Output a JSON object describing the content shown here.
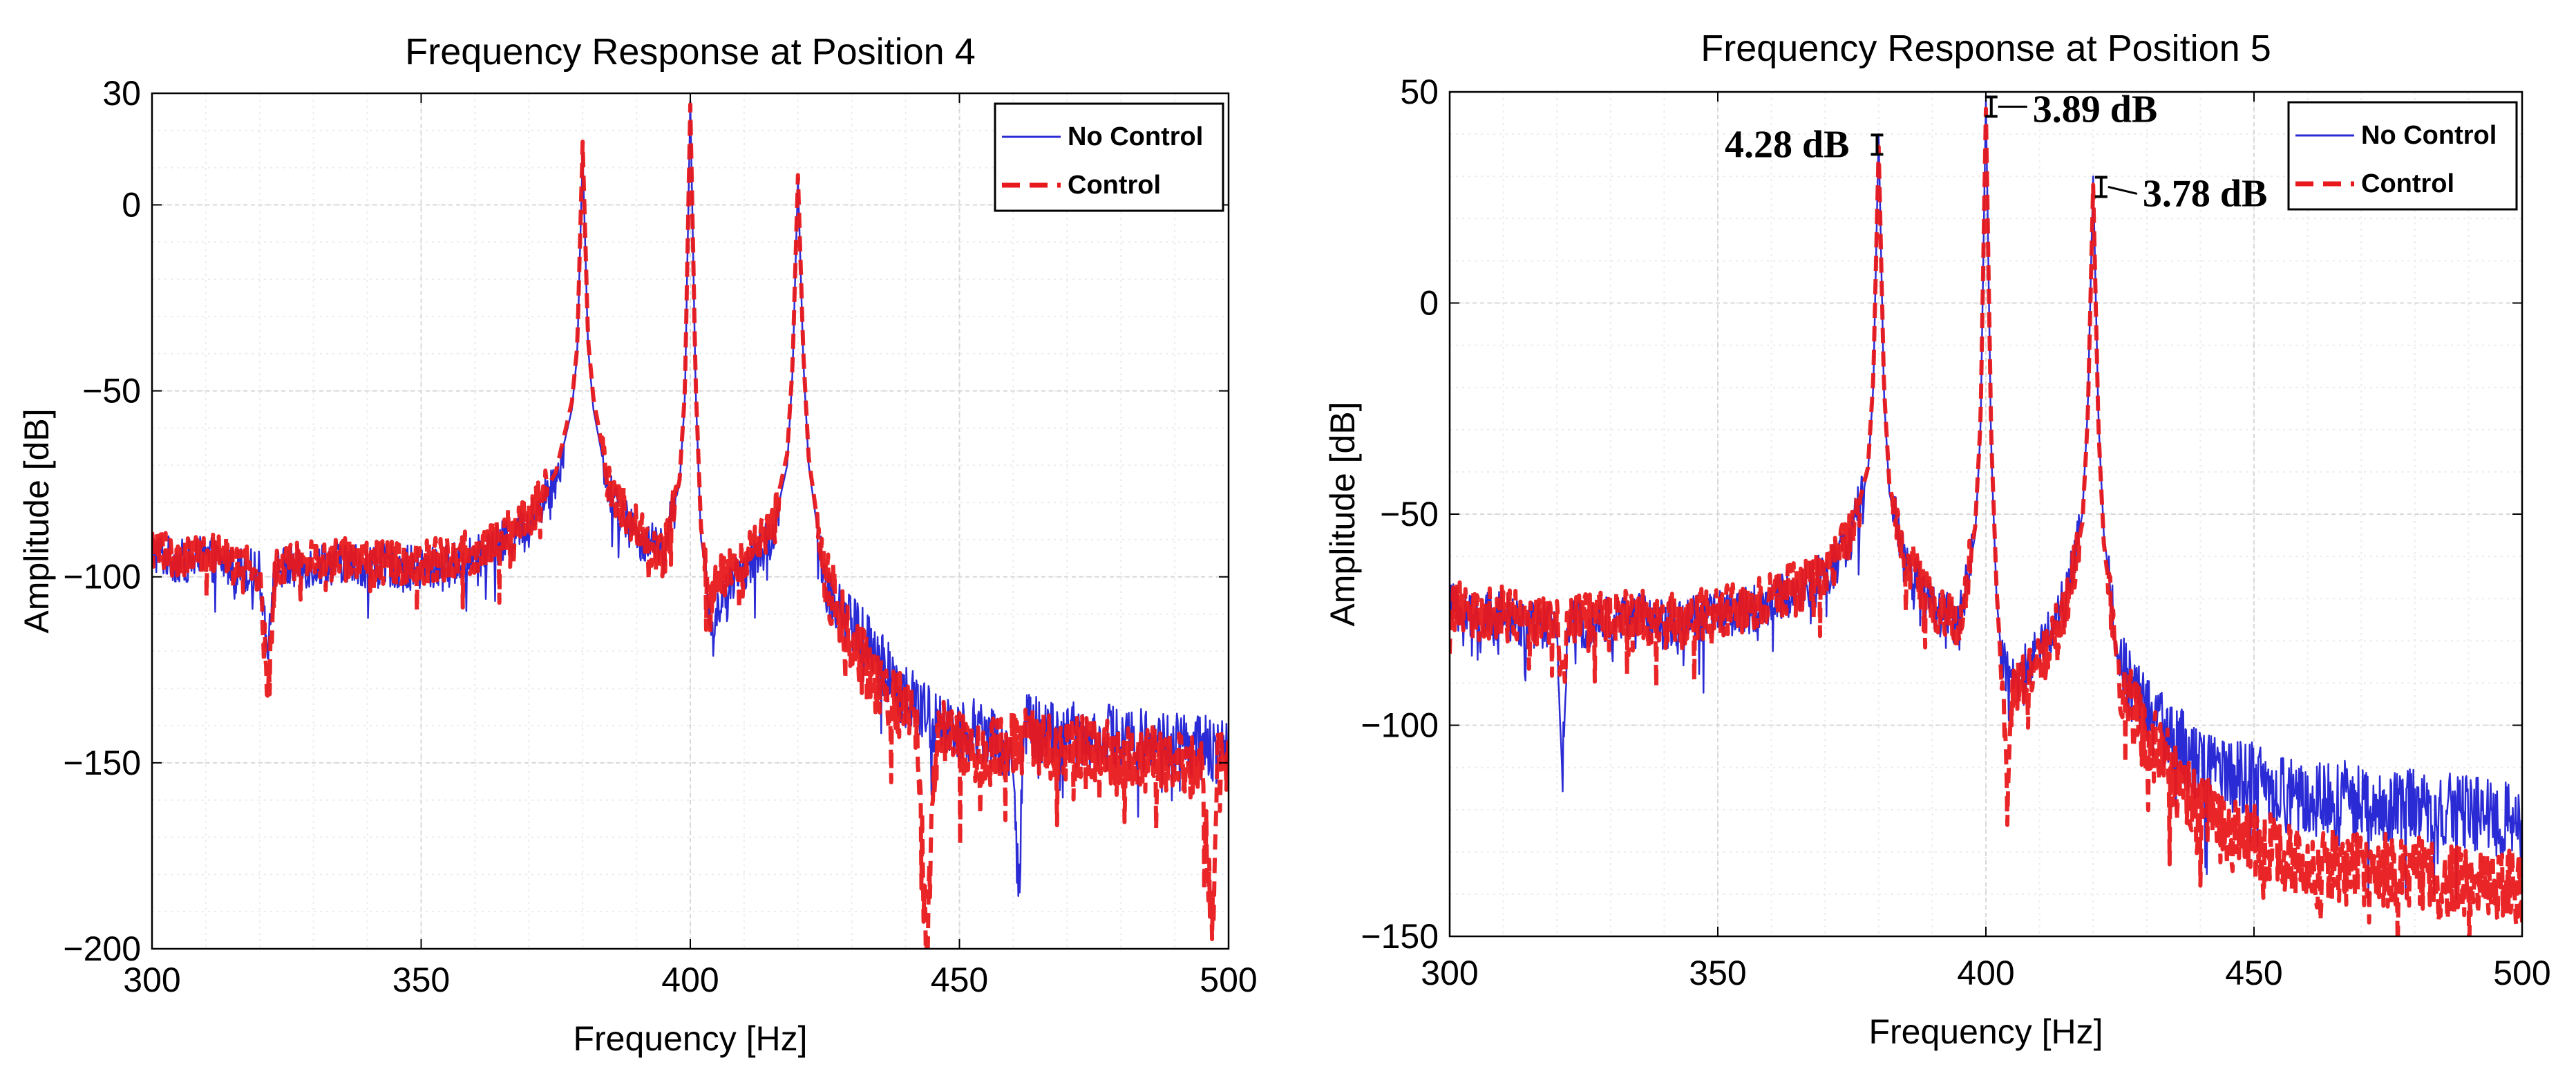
{
  "colors": {
    "no_control": "#2b2bd6",
    "control": "#e8191c",
    "grid": "#d8d8d8",
    "axes": "#000000"
  },
  "legend_labels": {
    "no_control": "No Control",
    "control": "Control"
  },
  "chart_data": [
    {
      "type": "line",
      "title": "Frequency Response at Position 4",
      "xlabel": "Frequency [Hz]",
      "ylabel": "Amplitude [dB]",
      "xlim": [
        300,
        500
      ],
      "ylim": [
        -200,
        30
      ],
      "xticks": [
        300,
        350,
        400,
        450,
        500
      ],
      "xtick_labels": [
        "300",
        "350",
        "400",
        "450",
        "500"
      ],
      "yticks": [
        -200,
        -150,
        -100,
        -50,
        0,
        30
      ],
      "ytick_labels": [
        "−200",
        "−150",
        "−100",
        "−50",
        "0",
        "30"
      ],
      "grid": true,
      "legend_position": "top-right",
      "annotations": [],
      "series": [
        {
          "name": "No Control",
          "style": "solid",
          "x": [
            300,
            305,
            310,
            315,
            320,
            321.5,
            323,
            330,
            335,
            340,
            345,
            350,
            355,
            360,
            365,
            370,
            375,
            378,
            379,
            380,
            381,
            382,
            385,
            390,
            395,
            398,
            399,
            400,
            401,
            402,
            403,
            404,
            405,
            410,
            415,
            418,
            419,
            420,
            421,
            422,
            425,
            430,
            435,
            440,
            445,
            450,
            455,
            460,
            461,
            462,
            465,
            470,
            475,
            480,
            485,
            490,
            495,
            500
          ],
          "y": [
            -93,
            -96,
            -95,
            -97,
            -99,
            -118,
            -98,
            -97,
            -96,
            -97,
            -97,
            -98,
            -97,
            -95,
            -91,
            -86,
            -74,
            -55,
            -40,
            14,
            -38,
            -55,
            -78,
            -89,
            -93,
            -75,
            -52,
            28,
            -50,
            -90,
            -100,
            -118,
            -108,
            -98,
            -90,
            -70,
            -45,
            7,
            -42,
            -70,
            -102,
            -112,
            -123,
            -132,
            -139,
            -141,
            -141,
            -150,
            -185,
            -140,
            -141,
            -142,
            -143,
            -143,
            -144,
            -145,
            -146,
            -148
          ]
        },
        {
          "name": "Control",
          "style": "dashed",
          "x": [
            300,
            305,
            310,
            315,
            320,
            321.5,
            323,
            330,
            335,
            340,
            345,
            350,
            355,
            360,
            365,
            370,
            375,
            378,
            379,
            380,
            381,
            382,
            385,
            390,
            395,
            398,
            399,
            400,
            401,
            402,
            403,
            404,
            405,
            410,
            415,
            418,
            419,
            420,
            421,
            422,
            425,
            430,
            435,
            440,
            442,
            444,
            445,
            446,
            450,
            455,
            460,
            465,
            470,
            475,
            480,
            485,
            490,
            495,
            497,
            498,
            500
          ],
          "y": [
            -92,
            -95,
            -94,
            -96,
            -98,
            -130,
            -97,
            -96,
            -95,
            -96,
            -96,
            -96,
            -95,
            -93,
            -89,
            -84,
            -72,
            -53,
            -38,
            17,
            -36,
            -52,
            -76,
            -87,
            -95,
            -74,
            -50,
            27,
            -48,
            -87,
            -97,
            -104,
            -101,
            -95,
            -87,
            -67,
            -43,
            8,
            -40,
            -68,
            -100,
            -118,
            -130,
            -136,
            -140,
            -200,
            -160,
            -140,
            -145,
            -148,
            -144,
            -145,
            -147,
            -146,
            -148,
            -149,
            -150,
            -152,
            -195,
            -150,
            -152
          ]
        }
      ]
    },
    {
      "type": "line",
      "title": "Frequency Response at Position 5",
      "xlabel": "Frequency [Hz]",
      "ylabel": "Amplitude [dB]",
      "xlim": [
        300,
        500
      ],
      "ylim": [
        -150,
        50
      ],
      "xticks": [
        300,
        350,
        400,
        450,
        500
      ],
      "xtick_labels": [
        "300",
        "350",
        "400",
        "450",
        "500"
      ],
      "yticks": [
        -150,
        -100,
        -50,
        0,
        50
      ],
      "ytick_labels": [
        "−150",
        "−100",
        "−50",
        "0",
        "50"
      ],
      "grid": true,
      "legend_position": "top-right",
      "annotations": [
        {
          "text": "4.28 dB",
          "x": 379.7,
          "y": 37.5,
          "side": "left"
        },
        {
          "text": "3.89 dB",
          "x": 401,
          "y": 46.5,
          "side": "right"
        },
        {
          "text": "3.78 dB",
          "x": 421.5,
          "y": 27.5,
          "side": "right"
        }
      ],
      "series": [
        {
          "name": "No Control",
          "style": "solid",
          "x": [
            300,
            305,
            310,
            315,
            320,
            321,
            322,
            323,
            330,
            335,
            340,
            345,
            350,
            355,
            360,
            365,
            370,
            375,
            378,
            379,
            380,
            381,
            382,
            385,
            390,
            395,
            398,
            399,
            400,
            401,
            402,
            403,
            405,
            410,
            415,
            418,
            419,
            420,
            421,
            422,
            425,
            430,
            435,
            440,
            445,
            450,
            455,
            460,
            465,
            470,
            475,
            480,
            485,
            490,
            495,
            500
          ],
          "y": [
            -72,
            -75,
            -74,
            -76,
            -77,
            -110,
            -78,
            -76,
            -75,
            -74,
            -76,
            -75,
            -74,
            -73,
            -71,
            -68,
            -65,
            -55,
            -40,
            -20,
            40,
            -22,
            -45,
            -62,
            -72,
            -76,
            -55,
            -30,
            48,
            -35,
            -70,
            -85,
            -90,
            -82,
            -70,
            -50,
            -25,
            30,
            -28,
            -55,
            -85,
            -97,
            -103,
            -110,
            -112,
            -113,
            -115,
            -118,
            -117,
            -118,
            -120,
            -119,
            -120,
            -121,
            -122,
            -123
          ]
        },
        {
          "name": "Control",
          "style": "dashed",
          "x": [
            300,
            305,
            310,
            315,
            320,
            321,
            322,
            323,
            330,
            335,
            340,
            345,
            350,
            355,
            360,
            365,
            370,
            375,
            378,
            379,
            380,
            381,
            382,
            385,
            390,
            395,
            398,
            399,
            400,
            401,
            402,
            403,
            404,
            405,
            410,
            415,
            418,
            419,
            420,
            421,
            422,
            425,
            430,
            435,
            440,
            445,
            450,
            455,
            460,
            465,
            470,
            475,
            480,
            485,
            490,
            495,
            500
          ],
          "y": [
            -71,
            -74,
            -73,
            -75,
            -76,
            -90,
            -77,
            -75,
            -74,
            -73,
            -75,
            -74,
            -73,
            -72,
            -70,
            -67,
            -64,
            -54,
            -39,
            -18,
            37,
            -20,
            -43,
            -60,
            -71,
            -77,
            -53,
            -28,
            46,
            -32,
            -68,
            -90,
            -118,
            -92,
            -85,
            -72,
            -52,
            -27,
            28,
            -30,
            -57,
            -90,
            -103,
            -112,
            -120,
            -125,
            -128,
            -130,
            -135,
            -133,
            -135,
            -134,
            -135,
            -136,
            -137,
            -138,
            -139
          ]
        }
      ]
    }
  ]
}
